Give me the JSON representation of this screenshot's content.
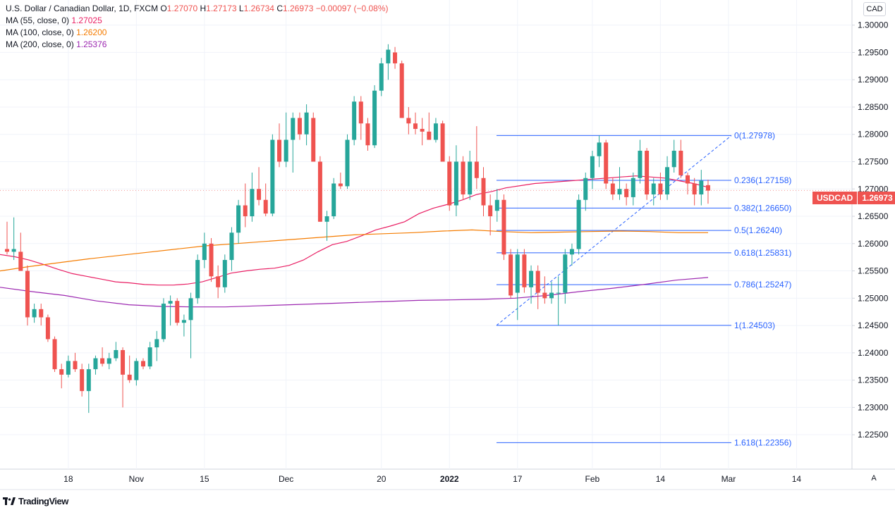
{
  "legend": {
    "title": "U.S. Dollar / Canadian Dollar, 1D, FXCM",
    "open_label": "O",
    "open": "1.27070",
    "high_label": "H",
    "high": "1.27173",
    "low_label": "L",
    "low": "1.26734",
    "close_label": "C",
    "close": "1.26973",
    "change": "−0.00097 (−0.08%)",
    "ma1_label": "MA (55, close, 0)",
    "ma1_value": "1.27025",
    "ma2_label": "MA (100, close, 0)",
    "ma2_value": "1.26200",
    "ma3_label": "MA (200, close, 0)",
    "ma3_value": "1.25376"
  },
  "currency": "CAD",
  "symbol_tag": "USDCAD",
  "last_price": "1.26973",
  "auto_label": "A",
  "footer_logo": "TradingView",
  "colors": {
    "up": "#26a69a",
    "down": "#ef5350",
    "ma55": "#e91e63",
    "ma100": "#f57c00",
    "ma200": "#9c27b0",
    "fib": "#2962ff"
  },
  "chart_data": {
    "type": "candlestick",
    "title": "U.S. Dollar / Canadian Dollar, 1D, FXCM",
    "ylim": [
      1.2187,
      1.3046
    ],
    "y_ticks": [
      "1.30000",
      "1.29500",
      "1.29000",
      "1.28500",
      "1.28000",
      "1.27500",
      "1.27000",
      "1.26500",
      "1.26000",
      "1.25500",
      "1.25000",
      "1.24500",
      "1.24000",
      "1.23500",
      "1.23000",
      "1.22500"
    ],
    "x_ticks": [
      "18",
      "Nov",
      "15",
      "Dec",
      "20",
      "2022",
      "17",
      "Feb",
      "14",
      "Mar",
      "14"
    ],
    "x_tick_index": [
      9,
      19,
      29,
      41,
      55,
      65,
      75,
      86,
      96,
      106,
      116
    ],
    "candles": [
      [
        1.259,
        1.264,
        1.258,
        1.2585
      ],
      [
        1.2585,
        1.2648,
        1.257,
        1.259
      ],
      [
        1.2585,
        1.262,
        1.255,
        1.255
      ],
      [
        1.255,
        1.256,
        1.245,
        1.2465
      ],
      [
        1.2465,
        1.249,
        1.2455,
        1.248
      ],
      [
        1.248,
        1.249,
        1.245,
        1.2465
      ],
      [
        1.2465,
        1.247,
        1.242,
        1.2425
      ],
      [
        1.2425,
        1.243,
        1.2365,
        1.237
      ],
      [
        1.237,
        1.238,
        1.2335,
        1.236
      ],
      [
        1.236,
        1.2395,
        1.2355,
        1.2385
      ],
      [
        1.2385,
        1.24,
        1.2365,
        1.237
      ],
      [
        1.237,
        1.238,
        1.232,
        1.233
      ],
      [
        1.233,
        1.238,
        1.229,
        1.237
      ],
      [
        1.237,
        1.2395,
        1.236,
        1.239
      ],
      [
        1.239,
        1.241,
        1.2375,
        1.238
      ],
      [
        1.238,
        1.24,
        1.237,
        1.239
      ],
      [
        1.239,
        1.242,
        1.2385,
        1.2405
      ],
      [
        1.2405,
        1.241,
        1.23,
        1.236
      ],
      [
        1.236,
        1.2395,
        1.2345,
        1.235
      ],
      [
        1.235,
        1.239,
        1.234,
        1.2385
      ],
      [
        1.2385,
        1.239,
        1.237,
        1.2375
      ],
      [
        1.2375,
        1.242,
        1.237,
        1.241
      ],
      [
        1.241,
        1.244,
        1.2385,
        1.2425
      ],
      [
        1.2425,
        1.25,
        1.242,
        1.249
      ],
      [
        1.249,
        1.2505,
        1.245,
        1.2495
      ],
      [
        1.2495,
        1.25,
        1.245,
        1.2455
      ],
      [
        1.2455,
        1.247,
        1.243,
        1.246
      ],
      [
        1.246,
        1.251,
        1.239,
        1.25
      ],
      [
        1.25,
        1.258,
        1.249,
        1.257
      ],
      [
        1.257,
        1.262,
        1.2555,
        1.26
      ],
      [
        1.26,
        1.261,
        1.253,
        1.254
      ],
      [
        1.254,
        1.256,
        1.25,
        1.252
      ],
      [
        1.252,
        1.258,
        1.251,
        1.257
      ],
      [
        1.257,
        1.263,
        1.255,
        1.262
      ],
      [
        1.262,
        1.268,
        1.26,
        1.267
      ],
      [
        1.267,
        1.271,
        1.263,
        1.265
      ],
      [
        1.265,
        1.273,
        1.264,
        1.27
      ],
      [
        1.27,
        1.274,
        1.267,
        1.268
      ],
      [
        1.268,
        1.271,
        1.265,
        1.2655
      ],
      [
        1.2655,
        1.28,
        1.265,
        1.279
      ],
      [
        1.279,
        1.282,
        1.274,
        1.275
      ],
      [
        1.275,
        1.284,
        1.274,
        1.279
      ],
      [
        1.279,
        1.284,
        1.273,
        1.283
      ],
      [
        1.283,
        1.284,
        1.279,
        1.28
      ],
      [
        1.28,
        1.2855,
        1.278,
        1.284
      ],
      [
        1.283,
        1.284,
        1.275,
        1.275
      ],
      [
        1.275,
        1.276,
        1.264,
        1.264
      ],
      [
        1.264,
        1.266,
        1.2605,
        1.265
      ],
      [
        1.265,
        1.272,
        1.2645,
        1.271
      ],
      [
        1.271,
        1.273,
        1.27,
        1.2705
      ],
      [
        1.2705,
        1.28,
        1.27,
        1.279
      ],
      [
        1.279,
        1.287,
        1.278,
        1.286
      ],
      [
        1.286,
        1.287,
        1.279,
        1.282
      ],
      [
        1.282,
        1.283,
        1.277,
        1.278
      ],
      [
        1.278,
        1.289,
        1.2775,
        1.288
      ],
      [
        1.288,
        1.294,
        1.287,
        1.293
      ],
      [
        1.293,
        1.2965,
        1.29,
        1.2955
      ],
      [
        1.295,
        1.296,
        1.292,
        1.293
      ],
      [
        1.293,
        1.2935,
        1.283,
        1.283
      ],
      [
        1.283,
        1.285,
        1.28,
        1.282
      ],
      [
        1.282,
        1.284,
        1.28,
        1.281
      ],
      [
        1.281,
        1.283,
        1.278,
        1.2805
      ],
      [
        1.2805,
        1.284,
        1.279,
        1.279
      ],
      [
        1.279,
        1.283,
        1.2785,
        1.282
      ],
      [
        1.282,
        1.2825,
        1.275,
        1.275
      ],
      [
        1.275,
        1.276,
        1.266,
        1.267
      ],
      [
        1.267,
        1.278,
        1.265,
        1.275
      ],
      [
        1.275,
        1.276,
        1.268,
        1.269
      ],
      [
        1.269,
        1.277,
        1.268,
        1.275
      ],
      [
        1.275,
        1.2815,
        1.27,
        1.272
      ],
      [
        1.272,
        1.274,
        1.265,
        1.267
      ],
      [
        1.267,
        1.269,
        1.2615,
        1.265
      ],
      [
        1.266,
        1.27,
        1.264,
        1.268
      ],
      [
        1.268,
        1.269,
        1.257,
        1.258
      ],
      [
        1.258,
        1.259,
        1.25,
        1.2505
      ],
      [
        1.251,
        1.259,
        1.246,
        1.258
      ],
      [
        1.258,
        1.259,
        1.251,
        1.252
      ],
      [
        1.252,
        1.256,
        1.249,
        1.255
      ],
      [
        1.255,
        1.256,
        1.248,
        1.251
      ],
      [
        1.251,
        1.254,
        1.249,
        1.25
      ],
      [
        1.25,
        1.253,
        1.249,
        1.251
      ],
      [
        1.251,
        1.254,
        1.245,
        1.251
      ],
      [
        1.251,
        1.259,
        1.249,
        1.258
      ],
      [
        1.258,
        1.26,
        1.256,
        1.259
      ],
      [
        1.259,
        1.269,
        1.258,
        1.268
      ],
      [
        1.268,
        1.273,
        1.266,
        1.272
      ],
      [
        1.272,
        1.277,
        1.27,
        1.276
      ],
      [
        1.276,
        1.2798,
        1.274,
        1.2785
      ],
      [
        1.2785,
        1.279,
        1.27,
        1.271
      ],
      [
        1.271,
        1.272,
        1.268,
        1.269
      ],
      [
        1.269,
        1.274,
        1.268,
        1.27
      ],
      [
        1.27,
        1.271,
        1.267,
        1.2685
      ],
      [
        1.2685,
        1.273,
        1.267,
        1.272
      ],
      [
        1.272,
        1.279,
        1.271,
        1.277
      ],
      [
        1.277,
        1.2775,
        1.268,
        1.269
      ],
      [
        1.269,
        1.272,
        1.267,
        1.271
      ],
      [
        1.271,
        1.273,
        1.268,
        1.269
      ],
      [
        1.269,
        1.276,
        1.268,
        1.274
      ],
      [
        1.274,
        1.279,
        1.273,
        1.277
      ],
      [
        1.277,
        1.279,
        1.272,
        1.2725
      ],
      [
        1.2725,
        1.273,
        1.269,
        1.271
      ],
      [
        1.271,
        1.272,
        1.267,
        1.269
      ],
      [
        1.269,
        1.2735,
        1.267,
        1.2715
      ],
      [
        1.2707,
        1.2717,
        1.2673,
        1.2697
      ]
    ],
    "series": [
      {
        "name": "MA (55, close, 0)",
        "values": [
          1.258,
          1.2576,
          1.257,
          1.2562,
          1.2553,
          1.2545,
          1.254,
          1.2535,
          1.253,
          1.2528,
          1.2525,
          1.2524,
          1.2524,
          1.2526,
          1.253,
          1.2538,
          1.2546,
          1.255,
          1.2553,
          1.2555,
          1.256,
          1.257,
          1.2585,
          1.2598,
          1.2604,
          1.2614,
          1.2625,
          1.2632,
          1.264,
          1.2655,
          1.2665,
          1.2672,
          1.268,
          1.269,
          1.2695,
          1.2702,
          1.2706,
          1.271,
          1.2712,
          1.2714,
          1.2716,
          1.2718,
          1.272,
          1.2722,
          1.2724,
          1.2722,
          1.272,
          1.2715,
          1.271,
          1.2703
        ]
      },
      {
        "name": "MA (100, close, 0)",
        "values": [
          1.255,
          1.2558,
          1.2565,
          1.2572,
          1.2578,
          1.2584,
          1.259,
          1.2596,
          1.26,
          1.2604,
          1.2608,
          1.2612,
          1.2616,
          1.2618,
          1.262,
          1.2623,
          1.2625,
          1.2622,
          1.262,
          1.2621,
          1.2622,
          1.2623,
          1.2622,
          1.262,
          1.262
        ]
      },
      {
        "name": "MA (200, close, 0)",
        "values": [
          1.252,
          1.2512,
          1.2505,
          1.2495,
          1.2488,
          1.2485,
          1.2484,
          1.2484,
          1.2486,
          1.2488,
          1.249,
          1.2492,
          1.2494,
          1.2496,
          1.2497,
          1.2498,
          1.25,
          1.2505,
          1.2512,
          1.2518,
          1.2525,
          1.2533,
          1.2538
        ]
      }
    ],
    "fib_levels": [
      {
        "label": "0(1.27978)",
        "price": 1.27978
      },
      {
        "label": "0.236(1.27158)",
        "price": 1.27158
      },
      {
        "label": "0.382(1.26650)",
        "price": 1.2665
      },
      {
        "label": "0.5(1.26240)",
        "price": 1.2624
      },
      {
        "label": "0.618(1.25831)",
        "price": 1.25831
      },
      {
        "label": "0.786(1.25247)",
        "price": 1.25247
      },
      {
        "label": "1(1.24503)",
        "price": 1.24503
      },
      {
        "label": "1.618(1.22356)",
        "price": 1.22356
      }
    ]
  }
}
